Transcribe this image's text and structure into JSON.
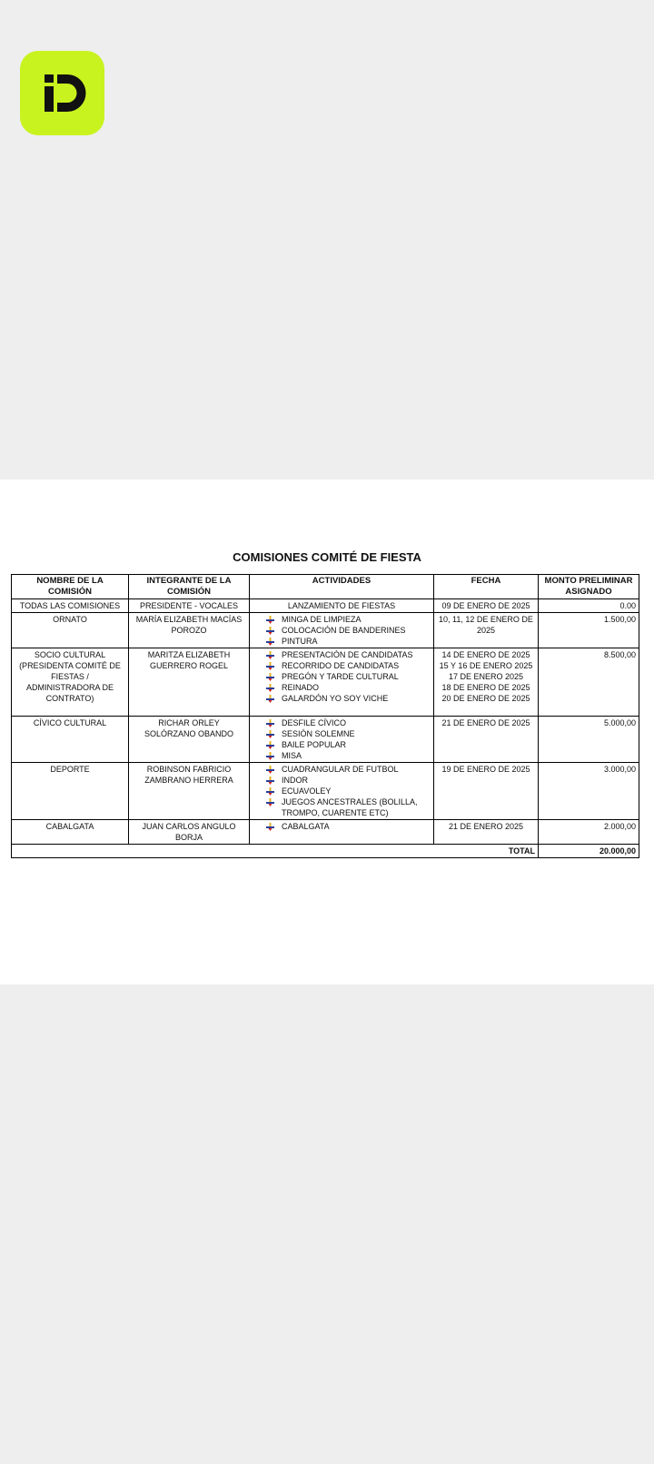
{
  "logo": {
    "text": "iD",
    "color": "#c9f31f"
  },
  "document": {
    "title": "COMISIONES COMITÉ DE FIESTA",
    "headers": [
      "NOMBRE DE LA COMISIÓN",
      "INTEGRANTE DE LA COMISIÓN",
      "ACTIVIDADES",
      "FECHA",
      "MONTO PRELIMINAR ASIGNADO"
    ],
    "rows": [
      {
        "comision": "TODAS LAS COMISIONES",
        "integrante": "PRESIDENTE - VOCALES",
        "actividades_plain": "LANZAMIENTO DE FIESTAS",
        "fechas": [
          "09 DE ENERO DE 2025"
        ],
        "monto": "0.00"
      },
      {
        "comision": "ORNATO",
        "integrante": "MARÍA ELIZABETH MACÍAS POROZO",
        "actividades": [
          "MINGA DE LIMPIEZA",
          "COLOCACIÓN DE BANDERINES",
          "PINTURA"
        ],
        "fechas": [
          "10, 11, 12 DE ENERO DE 2025"
        ],
        "monto": "1.500,00"
      },
      {
        "comision": "SOCIO CULTURAL (PRESIDENTA COMITÉ DE FIESTAS / ADMINISTRADORA DE CONTRATO)",
        "integrante": "MARITZA ELIZABETH GUERRERO ROGEL",
        "actividades": [
          "PRESENTACIÓN DE CANDIDATAS",
          "RECORRIDO DE CANDIDATAS",
          "PREGÓN Y TARDE CULTURAL",
          "REINADO",
          "GALARDÓN YO SOY VICHE"
        ],
        "fechas": [
          "14 DE ENERO DE 2025",
          "15 Y 16 DE ENERO 2025",
          "17 DE ENERO 2025",
          "18 DE ENERO DE 2025",
          "20 DE ENERO DE 2025"
        ],
        "monto": "8.500,00"
      },
      {
        "comision": "CÍVICO CULTURAL",
        "integrante": "RICHAR ORLEY SOLÓRZANO OBANDO",
        "actividades": [
          "DESFILE CÍVICO",
          "SESIÓN SOLEMNE",
          "BAILE POPULAR",
          "MISA"
        ],
        "fechas": [
          "21 DE ENERO DE 2025"
        ],
        "monto": "5.000,00"
      },
      {
        "comision": "DEPORTE",
        "integrante": "ROBINSON FABRICIO ZAMBRANO HERRERA",
        "actividades": [
          "CUADRANGULAR DE FUTBOL",
          "INDOR",
          "ECUAVOLEY",
          "JUEGOS ANCESTRALES (BOLILLA, TROMPO, CUARENTE ETC)"
        ],
        "fechas": [
          "19 DE ENERO DE 2025"
        ],
        "monto": "3.000,00"
      },
      {
        "comision": "CABALGATA",
        "integrante": "JUAN CARLOS ANGULO BORJA",
        "actividades": [
          "CABALGATA"
        ],
        "fechas": [
          "21 DE ENERO 2025"
        ],
        "monto": "2.000,00"
      }
    ],
    "total_label": "TOTAL",
    "total_value": "20.000,00",
    "bullet_icon": "arrow-down-bullet-icon"
  }
}
